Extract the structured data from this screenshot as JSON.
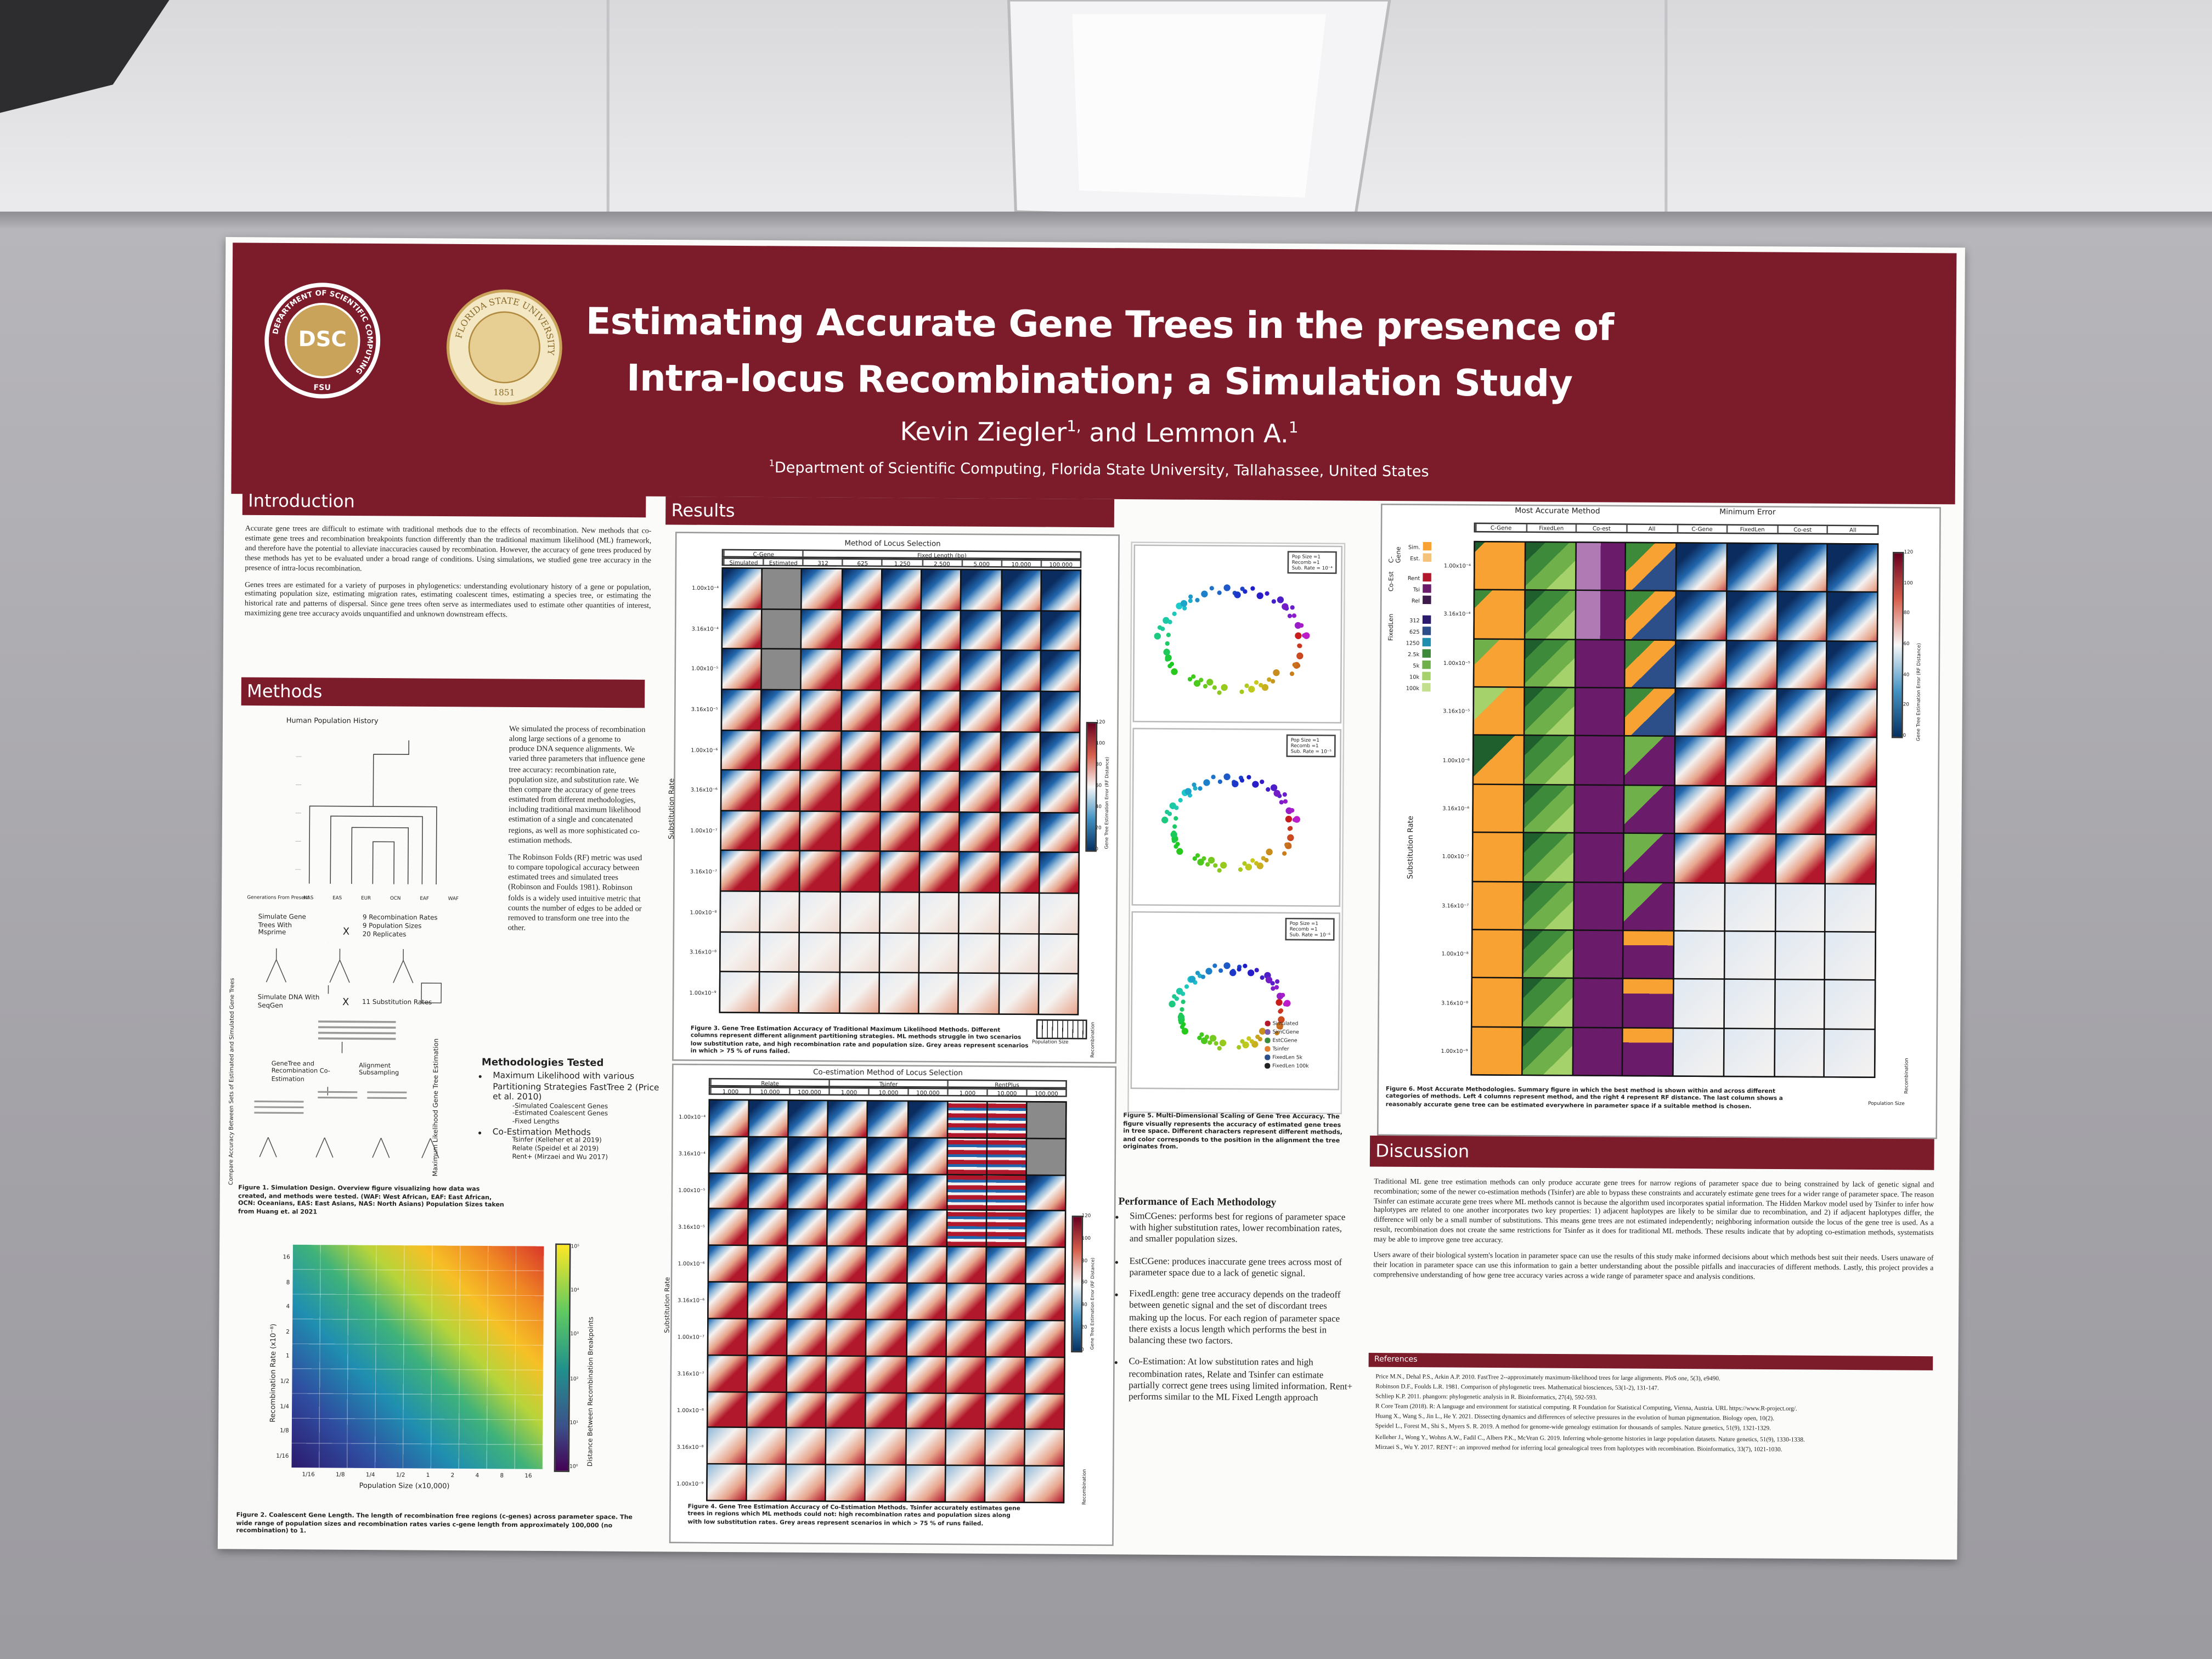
{
  "header": {
    "title": [
      "Estimating Accurate Gene Trees in the presence of",
      "Intra-locus Recombination; a Simulation Study"
    ],
    "authors": [
      {
        "name": "Kevin Ziegler",
        "sup": "1,"
      },
      {
        "name": " and Lemmon A.",
        "sup": "1"
      }
    ],
    "affiliation": {
      "sup": "1",
      "text": "Department of Scientific Computing, Florida State University, Tallahassee, United States"
    },
    "logo_dsc": {
      "center": "DSC",
      "ring": "DEPARTMENT OF SCIENTIFIC COMPUTING",
      "bottom": "FSU"
    },
    "logo_seal": {
      "ring": "FLORIDA STATE UNIVERSITY",
      "year": "1851"
    }
  },
  "introduction": {
    "heading": "Introduction",
    "paragraphs": [
      "Accurate gene trees are difficult to estimate with traditional methods due to the effects of recombination. New methods that co-estimate gene trees and recombination breakpoints function differently than the traditional maximum likelihood (ML) framework, and therefore have the potential to alleviate inaccuracies caused by recombination. However, the accuracy of gene trees produced by these methods has yet to be evaluated under a broad range of conditions. Using simulations, we studied gene tree accuracy in the presence of intra-locus recombination.",
      "Genes trees are estimated for a variety of purposes in phylogenetics: understanding evolutionary history of a gene or population, estimating population size, estimating migration rates, estimating coalescent times, estimating a species tree, or estimating the historical rate and patterns of dispersal. Since gene trees often serve as intermediates used to estimate other quantities of interest, maximizing gene tree accuracy avoids unquantified and unknown downstream effects."
    ]
  },
  "methods": {
    "heading": "Methods",
    "figure1": {
      "tree_title": "Human Population History",
      "tree_axis": "Generations From Present",
      "populations": [
        "NAS",
        "EAS",
        "EUR",
        "OCN",
        "EAF",
        "WAF"
      ],
      "steps": [
        "Simulate Gene Trees With Msprime",
        "9 Recombination Rates",
        "9 Population Sizes",
        "20 Replicates",
        "Simulate DNA With SeqGen",
        "11 Substitution Rates",
        "GeneTree and Recombination Co-Estimation",
        "Alignment Subsampling"
      ],
      "cross": "X",
      "side_left": "Compare Accuracy Between Sets of Estimated and Simulated Gene Trees",
      "side_right": "Maximum Likelihood Gene Tree Estimation",
      "caption": "Figure 1. Simulation Design. Overview figure visualizing how data was created, and methods were tested. (WAF: West African, EAF: East African, OCN: Oceanians, EAS: East Asians, NAS: North Asians) Population Sizes taken from Huang et. al 2021"
    },
    "paragraphs": [
      "We simulated the process of recombination along large sections of a genome to produce DNA sequence alignments. We varied three parameters that influence gene tree accuracy: recombination rate, population size, and substitution rate. We then compare the accuracy of gene trees estimated from different methodologies, including traditional maximum likelihood estimation of a single and concatenated regions, as well as more sophisticated co-estimation methods.",
      "The Robinson Folds (RF) metric was used to compare topological accuracy between estimated trees and simulated trees (Robinson and Foulds 1981). Robinson folds is a widely used intuitive metric that counts the number of edges to be added or removed to transform one tree into the other."
    ],
    "methodologies": {
      "heading": "Methodologies Tested",
      "items": [
        {
          "text": "Maximum Likelihood with various Partitioning Strategies FastTree 2 (Price et al. 2010)",
          "sub": [
            "-Simulated Coalescent Genes",
            "-Estimated Coalescent Genes",
            "-Fixed Lengths"
          ]
        },
        {
          "text": "Co-Estimation Methods",
          "sub": [
            "Tsinfer (Kelleher et al 2019)",
            "Relate (Speidel et al 2019)",
            "Rent+ (Mirzaei and Wu 2017)"
          ]
        }
      ]
    },
    "figure2": {
      "y_label": "Recombination Rate (x10⁻⁸)",
      "x_label": "Population Size (x10,000)",
      "y_ticks": [
        "16",
        "8",
        "4",
        "2",
        "1",
        "1/2",
        "1/4",
        "1/8",
        "1/16"
      ],
      "x_ticks": [
        "1/16",
        "1/8",
        "1/4",
        "1/2",
        "1",
        "2",
        "4",
        "8",
        "16"
      ],
      "colorbar_label": "Distance Between Recombination Breakpoints",
      "colorbar_ticks": [
        "10⁵",
        "10⁴",
        "10³",
        "10²",
        "10¹",
        "10⁰"
      ],
      "caption": "Figure 2. Coalescent Gene Length. The length of recombination free regions (c-genes) across parameter space. The wide range of population sizes and recombination rates varies c-gene length from approximately 100,000 (no recombination) to 1."
    }
  },
  "results": {
    "heading": "Results",
    "substitution_rates": [
      "1.00x10⁻⁴",
      "3.16x10⁻⁴",
      "1.00x10⁻⁵",
      "3.16x10⁻⁵",
      "1.00x10⁻⁶",
      "3.16x10⁻⁶",
      "1.00x10⁻⁷",
      "3.16x10⁻⁷",
      "1.00x10⁻⁸",
      "3.16x10⁻⁸",
      "1.00x10⁻⁹"
    ],
    "y_label": "Substitution Rate",
    "colorbar_label": "Gene Tree Estimation Error (RF Distance)",
    "colorbar_ticks": [
      "120",
      "100",
      "80",
      "60",
      "40",
      "20",
      "0"
    ],
    "mini_axes": [
      "Recombination",
      "Population Size"
    ],
    "figure3": {
      "title": "Method of Locus Selection",
      "groups": [
        "C-Gene",
        "Fixed Length (bp)"
      ],
      "columns": [
        "Simulated",
        "Estimated",
        "312",
        "625",
        "1,250",
        "2,500",
        "5,000",
        "10,000",
        "100,000"
      ],
      "caption": "Figure 3. Gene Tree Estimation Accuracy of Traditional Maximum Likelihood Methods. Different columns represent different alignment partitioning strategies. ML methods struggle in two scenarios low substitution rate, and high recombination rate and population size. Grey areas represent scenarios in which > 75 % of runs failed."
    },
    "figure4": {
      "title": "Co-estimation Method of Locus Selection",
      "groups": [
        "Relate",
        "Tsinfer",
        "RentPlus"
      ],
      "columns": [
        "1,000",
        "10,000",
        "100,000",
        "1,000",
        "10,000",
        "100,000",
        "1,000",
        "10,000",
        "100,000"
      ],
      "caption": "Figure 4. Gene Tree Estimation Accuracy of Co-Estimation Methods. Tsinfer accurately estimates gene trees in regions which ML methods could not: high recombination rates and population sizes along with low substitution rates. Grey areas represent scenarios in which > 75 % of runs failed."
    },
    "figure5": {
      "panels": [
        [
          "Pop Size =1",
          "Recomb =1",
          "Sub. Rate = 10⁻⁴"
        ],
        [
          "Pop Size =1",
          "Recomb =1",
          "Sub. Rate = 10⁻⁵"
        ],
        [
          "Pop Size =1",
          "Recomb =1",
          "Sub. Rate = 10⁻⁶"
        ]
      ],
      "legend": [
        "Simulated",
        "SimCGene",
        "EstCGene",
        "Tsinfer",
        "FixedLen 5k",
        "FixedLen 100k"
      ],
      "caption": "Figure 5. Multi-Dimensional Scaling of Gene Tree Accuracy. The figure visually represents the accuracy of estimated gene trees in tree space. Different characters represent different methods, and color corresponds to the position in the alignment the tree originates from."
    },
    "performance": {
      "heading": "Performance of Each Methodology",
      "items": [
        "SimCGenes: performs best for regions of parameter space with higher substitution rates, lower recombination rates, and smaller population sizes.",
        "EstCGene: produces inaccurate gene trees across most of parameter space due to a lack of genetic signal.",
        "FixedLength: gene tree accuracy depends on the tradeoff between genetic signal and the set of discordant trees making up the locus. For each region of parameter space there exists a locus length which performs the best in balancing these two factors.",
        "Co-Estimation: At low substitution rates and high recombination rates, Relate and Tsinfer can estimate partially correct gene trees using limited information. Rent+ performs similar to the ML Fixed Length approach"
      ]
    },
    "figure6": {
      "groups": [
        "Most Accurate Method",
        "Minimum Error"
      ],
      "columns": [
        "C-Gene",
        "FixedLen",
        "Co-est",
        "All",
        "C-Gene",
        "FixedLen",
        "Co-est",
        "All"
      ],
      "legend": [
        {
          "title": "C-Gene",
          "entries": [
            "Sim.",
            "Est."
          ]
        },
        {
          "title": "Co-Est",
          "entries": [
            "Rent",
            "Tsi",
            "Rel"
          ]
        },
        {
          "title": "FixedLen",
          "entries": [
            "312",
            "625",
            "1250",
            "2.5k",
            "5k",
            "10k",
            "100k"
          ]
        }
      ],
      "caption": "Figure 6. Most Accurate Methodologies. Summary figure in which the best method is shown within and across different categories of methods. Left 4 columns represent method, and the right 4 represent RF distance. The last column shows a reasonably accurate gene tree can be estimated everywhere in parameter space if a suitable method is chosen."
    }
  },
  "discussion": {
    "heading": "Discussion",
    "paragraphs": [
      "Traditional ML gene tree estimation methods can only produce accurate gene trees for narrow regions of parameter space due to being constrained by lack of genetic signal and recombination; some of the newer co-estimation methods (Tsinfer) are able to bypass these constraints and accurately estimate gene trees for a wider range of parameter space. The reason Tsinfer can estimate accurate gene trees where ML methods cannot is because the algorithm used incorporates spatial information. The Hidden Markov model used by Tsinfer to infer how haplotypes are related to one another incorporates two key properties: 1) adjacent haplotypes are likely to be similar due to recombination, and 2) if adjacent haplotypes differ, the difference will only be a small number of substitutions. This means gene trees are not estimated independently; neighboring information outside the locus of the gene tree is used. As a result, recombination does not create the same restrictions for Tsinfer as it does for traditional ML methods. These results indicate that by adopting co-estimation methods, systematists may be able to improve gene tree accuracy.",
      "Users aware of their biological system's location in parameter space can use the results of this study make informed decisions about which methods best suit their needs. Users unaware of their location in parameter space can use this information to gain a better understanding about the possible pitfalls and inaccuracies of different methods. Lastly, this project provides a comprehensive understanding of how gene tree accuracy varies across a wide range of parameter space and analysis conditions."
    ]
  },
  "references": {
    "heading": "References",
    "items": [
      "Price M.N., Dehal P.S., Arkin A.P. 2010. FastTree 2--approximately maximum-likelihood trees for large alignments. PloS one, 5(3), e9490.",
      "Robinson D.F., Foulds L.R. 1981. Comparison of phylogenetic trees. Mathematical biosciences, 53(1-2), 131-147.",
      "Schliep K.P. 2011. phangorn: phylogenetic analysis in R. Bioinformatics, 27(4), 592-593.",
      "R Core Team (2018). R: A language and environment for statistical computing. R Foundation for Statistical Computing, Vienna, Austria. URL https://www.R-project.org/.",
      "Huang X., Wang S., Jin L., He Y. 2021. Dissecting dynamics and differences of selective pressures in the evolution of human pigmentation. Biology open, 10(2).",
      "Speidel L., Forest M., Shi S., Myers S. R. 2019. A method for genome-wide genealogy estimation for thousands of samples. Nature genetics, 51(9), 1321-1329.",
      "Kelleher J., Wong Y., Wohns A.W., Fadil C., Albers P.K., McVean G. 2019. Inferring whole-genome histories in large population datasets. Nature genetics, 51(9), 1330-1338.",
      "Mirzaei S., Wu Y. 2017. RENT+: an improved method for inferring local genealogical trees from haplotypes with recombination. Bioinformatics, 33(7), 1021-1030."
    ]
  }
}
